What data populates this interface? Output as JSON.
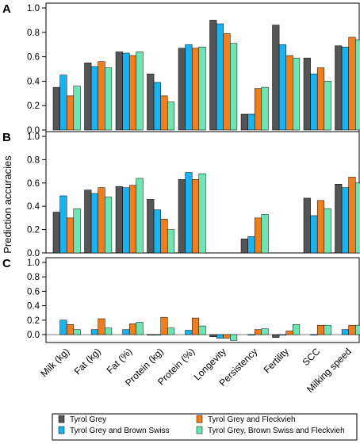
{
  "chart_data": {
    "type": "bar",
    "ylabel": "Prediction accuracies",
    "categories": [
      "Milk (kg)",
      "Fat (kg)",
      "Fat (%)",
      "Protein (kg)",
      "Protein (%)",
      "Longevity",
      "Persistency",
      "Fertility",
      "SCC",
      "Milking speed"
    ],
    "series_names": [
      "Tyrol Grey",
      "Tyrol Grey and Brown Swiss",
      "Tyrol Grey and Fleckvieh",
      "Tyrol Grey, Brown Swiss and Fleckvieh"
    ],
    "colors": [
      "#555555",
      "#1ab2f0",
      "#f07d1e",
      "#6ee6b4"
    ],
    "legend_position": "bottom",
    "panels": [
      {
        "label": "A",
        "ylim": [
          0,
          1.0
        ],
        "yticks": [
          "0.0",
          "0.2",
          "0.4",
          "0.6",
          "0.8",
          "1.0"
        ],
        "series": [
          {
            "values": [
              0.35,
              0.55,
              0.64,
              0.46,
              0.67,
              0.9,
              0.13,
              0.86,
              0.59,
              0.69
            ]
          },
          {
            "values": [
              0.45,
              0.52,
              0.63,
              0.39,
              0.7,
              0.87,
              0.13,
              0.7,
              0.46,
              0.68
            ]
          },
          {
            "values": [
              0.28,
              0.56,
              0.61,
              0.28,
              0.67,
              0.79,
              0.34,
              0.61,
              0.51,
              0.76
            ]
          },
          {
            "values": [
              0.36,
              0.51,
              0.64,
              0.23,
              0.68,
              0.71,
              0.35,
              0.59,
              0.4,
              0.74
            ]
          }
        ]
      },
      {
        "label": "B",
        "ylim": [
          0,
          1.0
        ],
        "yticks": [
          "0.0",
          "0.2",
          "0.4",
          "0.6",
          "0.8",
          "1.0"
        ],
        "series": [
          {
            "values": [
              0.35,
              0.54,
              0.57,
              0.46,
              0.63,
              null,
              0.12,
              null,
              0.47,
              0.59
            ]
          },
          {
            "values": [
              0.49,
              0.51,
              0.56,
              0.37,
              0.69,
              null,
              0.14,
              null,
              0.32,
              0.56
            ]
          },
          {
            "values": [
              0.3,
              0.56,
              0.58,
              0.29,
              0.63,
              null,
              0.3,
              null,
              0.45,
              0.65
            ]
          },
          {
            "values": [
              0.38,
              0.48,
              0.64,
              0.2,
              0.68,
              null,
              0.33,
              null,
              0.38,
              0.6
            ]
          }
        ]
      },
      {
        "label": "C",
        "ylim": [
          -0.1,
          1.0
        ],
        "yticks": [
          "0.0",
          "0.2",
          "0.4",
          "0.6",
          "0.8",
          "1.0"
        ],
        "series": [
          {
            "values": [
              null,
              null,
              null,
              0.0,
              null,
              -0.03,
              null,
              -0.04,
              null,
              null
            ]
          },
          {
            "values": [
              0.2,
              0.07,
              0.07,
              0.0,
              0.06,
              -0.05,
              0.0,
              0.0,
              0.0,
              0.07
            ]
          },
          {
            "values": [
              0.14,
              0.22,
              0.15,
              0.24,
              0.23,
              -0.05,
              0.07,
              0.05,
              0.13,
              0.13
            ]
          },
          {
            "values": [
              0.07,
              0.09,
              0.17,
              0.09,
              0.12,
              -0.08,
              0.08,
              0.14,
              0.13,
              0.13
            ]
          }
        ]
      }
    ]
  }
}
